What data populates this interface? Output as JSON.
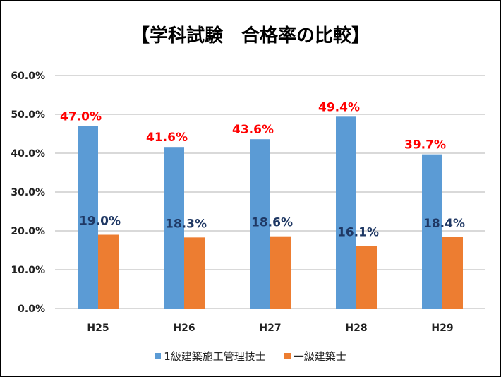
{
  "chart_data": {
    "type": "bar",
    "title": "【学科試験　合格率の比較】",
    "categories": [
      "H25",
      "H26",
      "H27",
      "H28",
      "H29"
    ],
    "series": [
      {
        "name": "1級建築施工管理技士",
        "values": [
          47.0,
          41.6,
          43.6,
          49.4,
          39.7
        ],
        "labels": [
          "47.0%",
          "41.6%",
          "43.6%",
          "49.4%",
          "39.7%"
        ],
        "color": "#5b9bd5",
        "label_color": "#ff0000"
      },
      {
        "name": "一級建築士",
        "values": [
          19.0,
          18.3,
          18.6,
          16.1,
          18.4
        ],
        "labels": [
          "19.0%",
          "18.3%",
          "18.6%",
          "16.1%",
          "18.4%"
        ],
        "color": "#ed7d31",
        "label_color": "#1f3864"
      }
    ],
    "yticks": [
      "0.0%",
      "10.0%",
      "20.0%",
      "30.0%",
      "40.0%",
      "50.0%",
      "60.0%"
    ],
    "ylim": [
      0,
      60
    ],
    "grid": true,
    "legend": "bottom"
  }
}
